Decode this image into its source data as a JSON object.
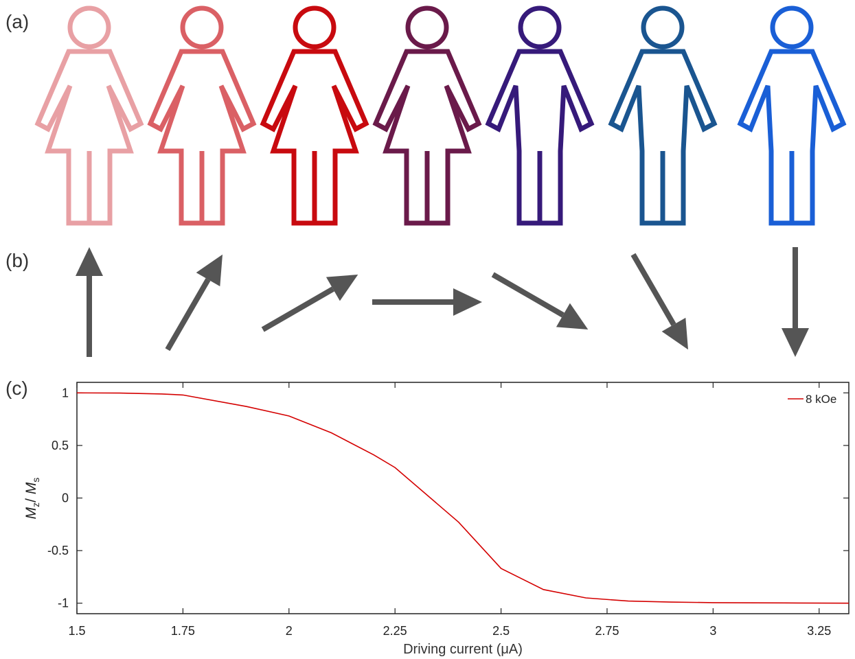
{
  "panels": {
    "a": "(a)",
    "b": "(b)",
    "c": "(c)"
  },
  "figures": [
    {
      "gender": "female",
      "color": "#e8a0a4"
    },
    {
      "gender": "female",
      "color": "#da6065"
    },
    {
      "gender": "female",
      "color": "#c80a0f"
    },
    {
      "gender": "female",
      "color": "#6a1a4a"
    },
    {
      "gender": "male",
      "color": "#361a7a"
    },
    {
      "gender": "male",
      "color": "#1a5590"
    },
    {
      "gender": "male",
      "color": "#1a5fd6"
    }
  ],
  "arrows": {
    "color": "#555555",
    "angles_deg": [
      90,
      60,
      30,
      0,
      -30,
      -60,
      -90
    ]
  },
  "chart_data": {
    "type": "line",
    "xlabel": "Driving current (μA)",
    "ylabel_main": "M",
    "ylabel_sub_1": "z",
    "ylabel_sep": "/ ",
    "ylabel_main_2": "M",
    "ylabel_sub_2": "s",
    "xlim": [
      1.5,
      3.32
    ],
    "ylim": [
      -1.1,
      1.1
    ],
    "x_ticks": [
      1.5,
      1.75,
      2,
      2.25,
      2.5,
      2.75,
      3,
      3.25
    ],
    "x_tick_labels": [
      "1.5",
      "1.75",
      "2",
      "2.25",
      "2.5",
      "2.75",
      "3",
      "3.25"
    ],
    "y_ticks": [
      1,
      0.5,
      0,
      -0.5,
      -1
    ],
    "y_tick_labels": [
      "1",
      "0.5",
      "0",
      "-0.5",
      "-1"
    ],
    "grid": false,
    "legend_position": "top-right",
    "series": [
      {
        "name": "8 kOe",
        "color": "#d40000",
        "x": [
          1.5,
          1.6,
          1.7,
          1.75,
          1.9,
          2.0,
          2.1,
          2.2,
          2.25,
          2.4,
          2.5,
          2.6,
          2.7,
          2.8,
          2.9,
          3.0,
          3.1,
          3.2,
          3.32
        ],
        "y": [
          1.0,
          0.998,
          0.99,
          0.98,
          0.87,
          0.78,
          0.62,
          0.41,
          0.29,
          -0.23,
          -0.67,
          -0.87,
          -0.95,
          -0.98,
          -0.99,
          -0.995,
          -0.997,
          -0.998,
          -1.0
        ]
      }
    ]
  }
}
